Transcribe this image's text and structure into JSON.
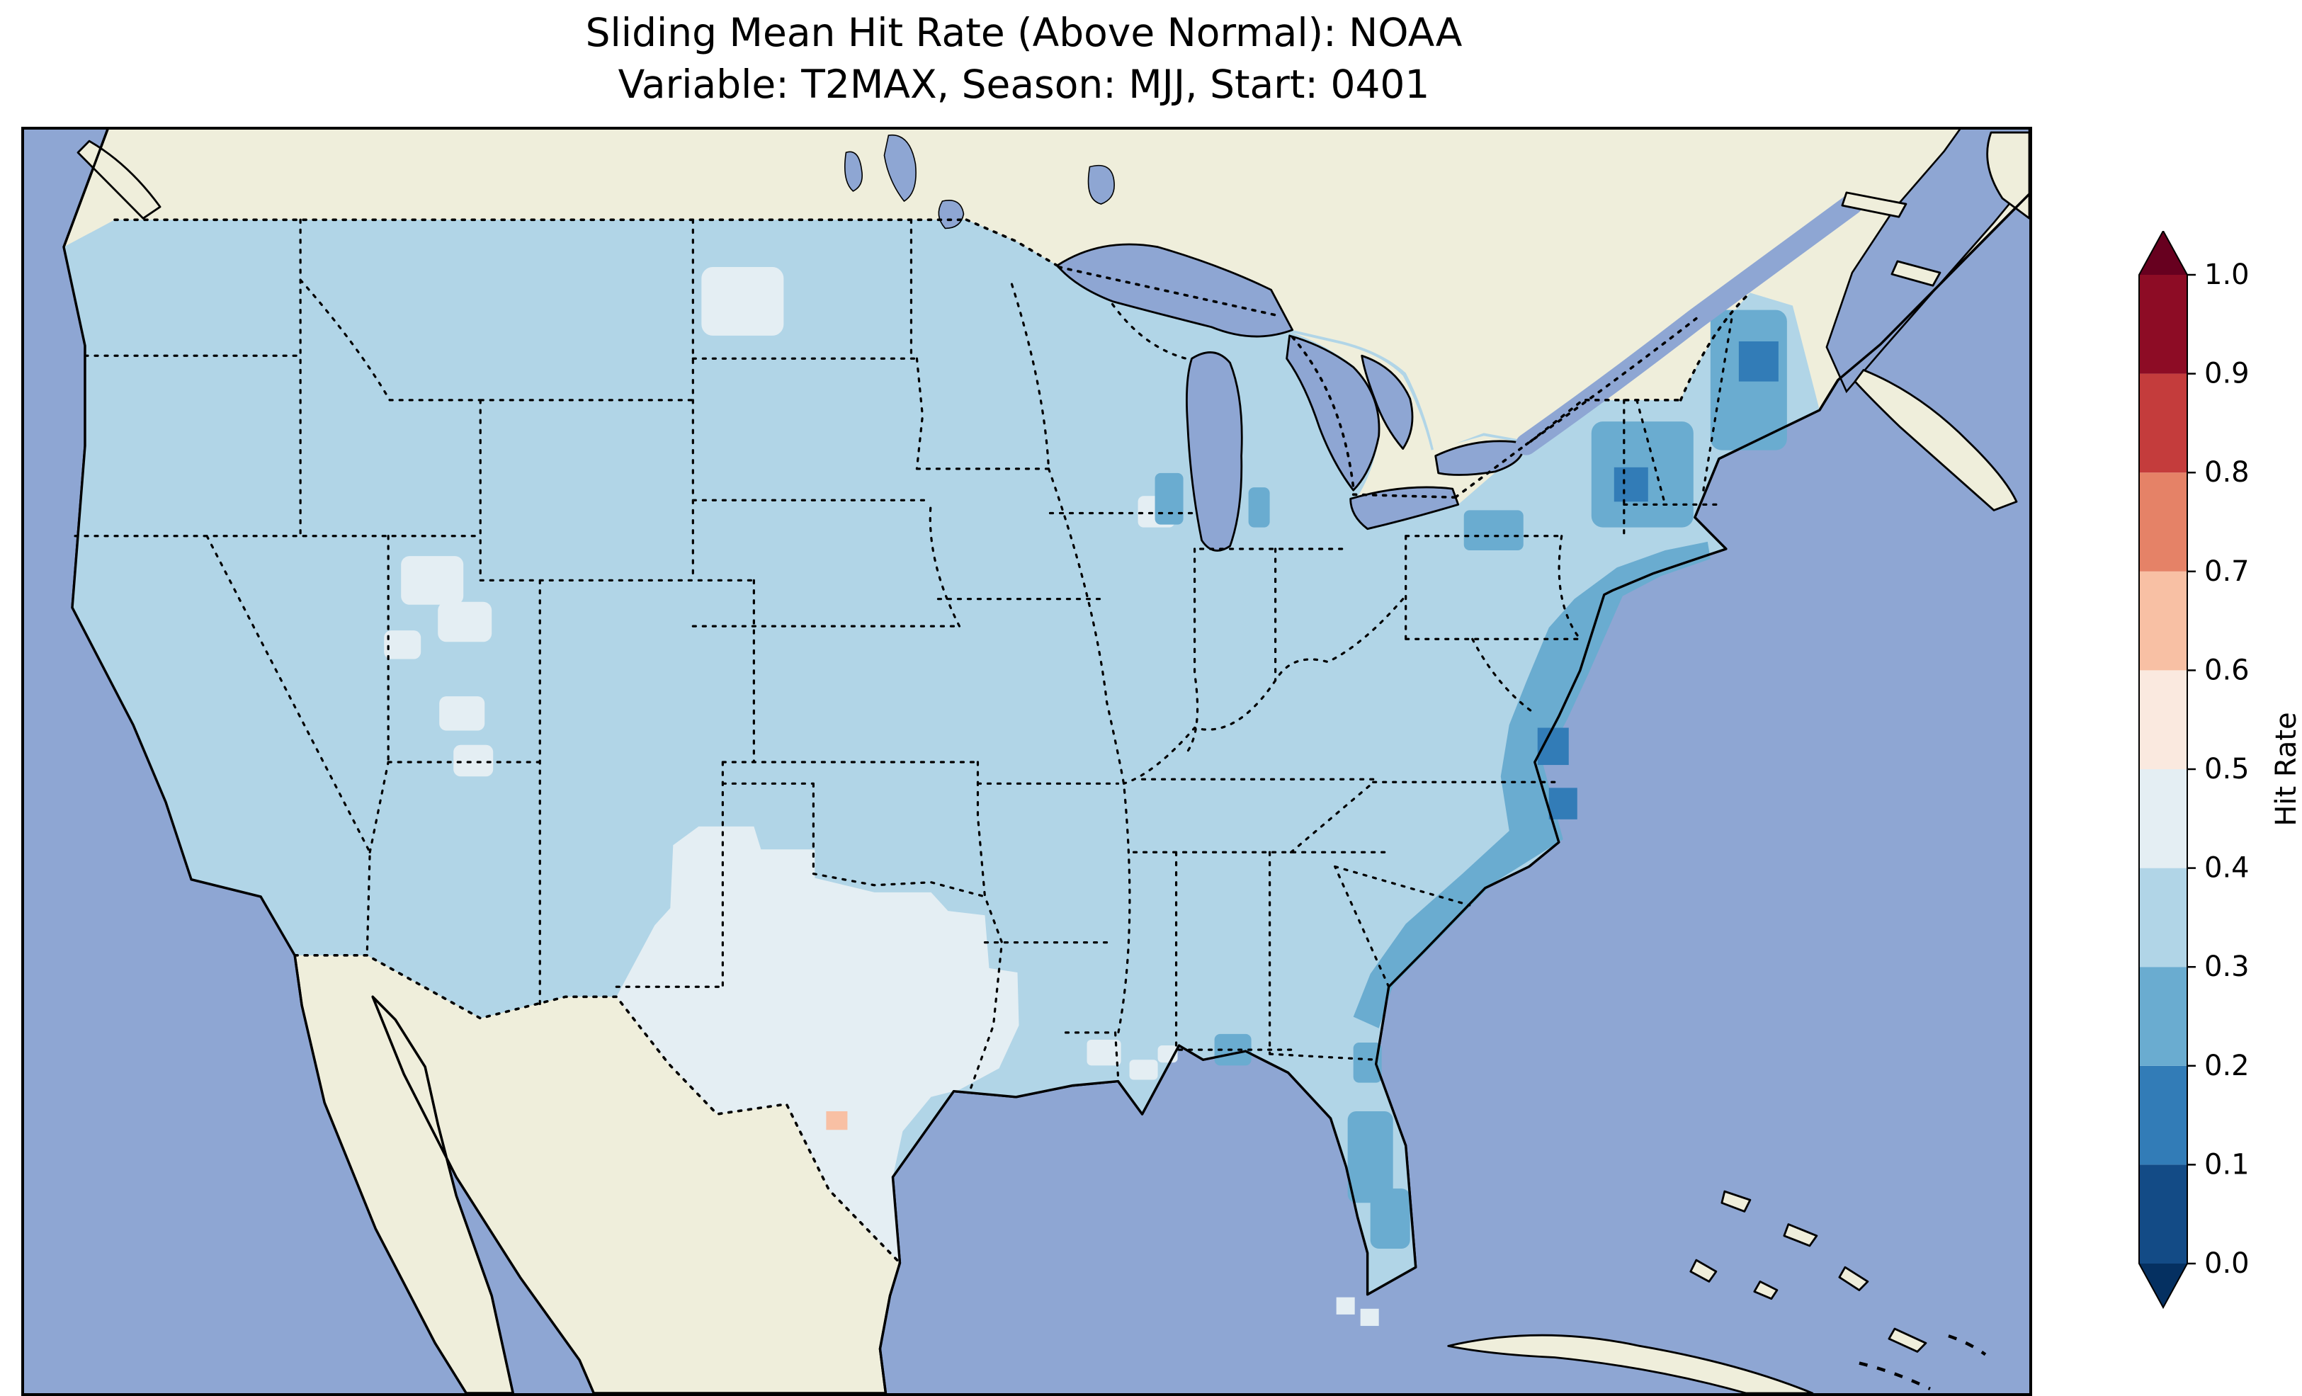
{
  "figure": {
    "title_line1": "Sliding Mean Hit Rate (Above Normal): NOAA",
    "title_line2": "Variable: T2MAX, Season: MJJ, Start: 0401"
  },
  "colorbar": {
    "label": "Hit Rate",
    "ticks": [
      "1.0",
      "0.9",
      "0.8",
      "0.7",
      "0.6",
      "0.5",
      "0.4",
      "0.3",
      "0.2",
      "0.1",
      "0.0"
    ],
    "bands": [
      {
        "range": [
          0.0,
          0.1
        ],
        "color": "#134b86"
      },
      {
        "range": [
          0.1,
          0.2
        ],
        "color": "#327cb7"
      },
      {
        "range": [
          0.2,
          0.3
        ],
        "color": "#6aacd0"
      },
      {
        "range": [
          0.3,
          0.4
        ],
        "color": "#b1d5e7"
      },
      {
        "range": [
          0.4,
          0.5
        ],
        "color": "#e4eef3"
      },
      {
        "range": [
          0.5,
          0.6
        ],
        "color": "#fae9df"
      },
      {
        "range": [
          0.6,
          0.7
        ],
        "color": "#f8c0a4"
      },
      {
        "range": [
          0.7,
          0.8
        ],
        "color": "#e58267"
      },
      {
        "range": [
          0.8,
          0.9
        ],
        "color": "#c43c3c"
      },
      {
        "range": [
          0.9,
          1.0
        ],
        "color": "#8d0c25"
      }
    ],
    "under_color": "#053061",
    "over_color": "#67001f",
    "outline_color": "#000000"
  },
  "map": {
    "ocean_color": "#8ea6d3",
    "land_color": "#efeedb",
    "coastline_color": "#000000",
    "state_border_style": "dotted",
    "region_shown": "Contiguous United States with southern Canada, northern Mexico, Gulf of Mexico and western Atlantic"
  },
  "chart_data": {
    "type": "heatmap",
    "title": "Sliding Mean Hit Rate (Above Normal): NOAA",
    "subtitle": "Variable: T2MAX, Season: MJJ, Start: 0401",
    "source": "NOAA",
    "variable": "T2MAX",
    "season": "MJJ",
    "start": "0401",
    "metric": "Hit Rate",
    "colormap": "RdBu_r, discrete 0.1 bins with under/over arrow extensions",
    "colorbar_range": [
      0.0,
      1.0
    ],
    "colorbar_step": 0.1,
    "legend_position": "vertical colorbar at right",
    "observed_value_range": [
      0.15,
      0.65
    ],
    "regions": [
      {
        "region": "Most of CONUS (West, northern Plains, Midwest, interior South)",
        "hit_rate": 0.35
      },
      {
        "region": "Texas, western Oklahoma and eastern New Mexico",
        "hit_rate": 0.45
      },
      {
        "region": "Central Texas single cell",
        "hit_rate": 0.65
      },
      {
        "region": "Central North Dakota patch",
        "hit_rate": 0.45
      },
      {
        "region": "Utah / Great Basin patches",
        "hit_rate": 0.45
      },
      {
        "region": "Southern Louisiana coastal patches",
        "hit_rate": 0.45
      },
      {
        "region": "Mid-Atlantic and Southeast coastline (NJ to GA)",
        "hit_rate": 0.25
      },
      {
        "region": "Chesapeake Bay coastal cells (darkest)",
        "hit_rate": 0.15
      },
      {
        "region": "Northern New England / upstate NY patches",
        "hit_rate": 0.25
      },
      {
        "region": "Maine darkest cells",
        "hit_rate": 0.15
      },
      {
        "region": "Florida peninsula dark cells",
        "hit_rate": 0.25
      },
      {
        "region": "Mobile Bay Gulf coast cells",
        "hit_rate": 0.25
      },
      {
        "region": "Lake Michigan shoreline cells",
        "hit_rate": 0.25
      },
      {
        "region": "Florida Keys vicinity light cells",
        "hit_rate": 0.45
      }
    ],
    "no_data_regions": [
      "Canada",
      "Mexico",
      "oceans",
      "Great Lakes"
    ]
  }
}
